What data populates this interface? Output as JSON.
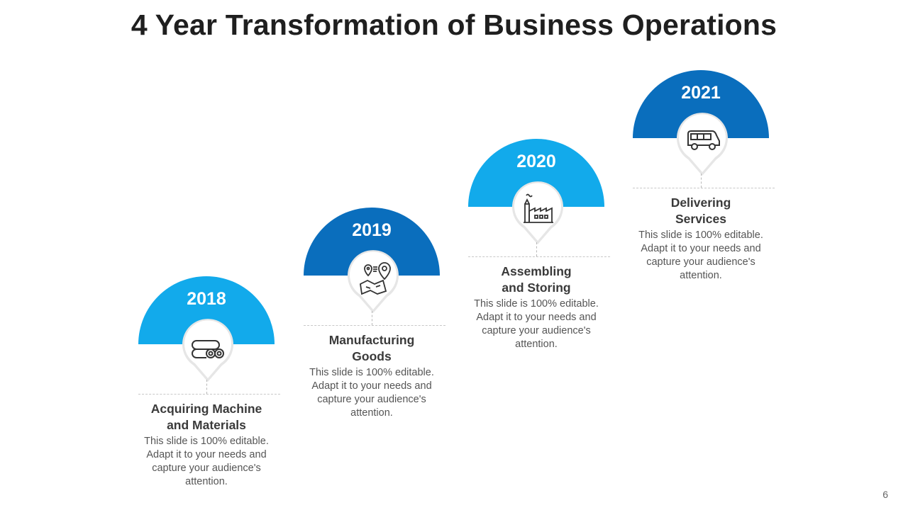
{
  "title": "4 Year Transformation of Business Operations",
  "page_number": "6",
  "colors": {
    "light_blue": "#12aaeb",
    "dark_blue": "#0a6ebd"
  },
  "steps": [
    {
      "year": "2018",
      "heading_line1": "Acquiring Machine",
      "heading_line2": "and Materials",
      "description": "This slide is 100% editable. Adapt it to your needs and capture your audience's attention.",
      "icon": "pipes-icon"
    },
    {
      "year": "2019",
      "heading_line1": "Manufacturing",
      "heading_line2": "Goods",
      "description": "This slide is 100% editable. Adapt it to your needs and capture your audience's attention.",
      "icon": "map-location-icon"
    },
    {
      "year": "2020",
      "heading_line1": "Assembling",
      "heading_line2": "and Storing",
      "description": "This slide is 100% editable. Adapt it to your needs and capture your audience's attention.",
      "icon": "factory-icon"
    },
    {
      "year": "2021",
      "heading_line1": "Delivering",
      "heading_line2": "Services",
      "description": "This slide is 100% editable. Adapt it to your needs and capture your audience's attention.",
      "icon": "van-icon"
    }
  ]
}
